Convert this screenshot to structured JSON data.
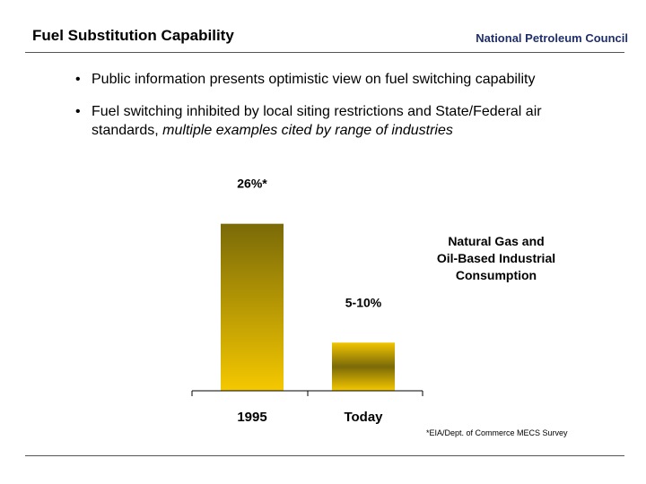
{
  "header": {
    "title": "Fuel Substitution Capability",
    "organization": "National Petroleum Council"
  },
  "bullets": [
    {
      "text": "Public information presents optimistic view on fuel switching capability",
      "italic_suffix": ""
    },
    {
      "text": "Fuel switching inhibited by local siting restrictions and State/Federal air standards, ",
      "italic_suffix": "multiple examples cited by range of industries"
    }
  ],
  "footnote": "*EIA/Dept. of Commerce MECS Survey",
  "colors": {
    "bar_top": "#7a6a08",
    "bar_bottom": "#f5c800",
    "org_text": "#1f2f6b"
  },
  "chart_data": {
    "type": "bar",
    "categories": [
      "1995",
      "Today"
    ],
    "values": [
      26,
      7.5
    ],
    "data_labels": [
      "26%*",
      "5-10%"
    ],
    "annotation": "Natural Gas and Oil-Based Industrial Consumption",
    "annotation_lines": [
      "Natural Gas and",
      "Oil-Based Industrial",
      "Consumption"
    ],
    "ylim": [
      0,
      30
    ],
    "xlabel": "",
    "ylabel": "",
    "grid": false,
    "legend": "none"
  }
}
